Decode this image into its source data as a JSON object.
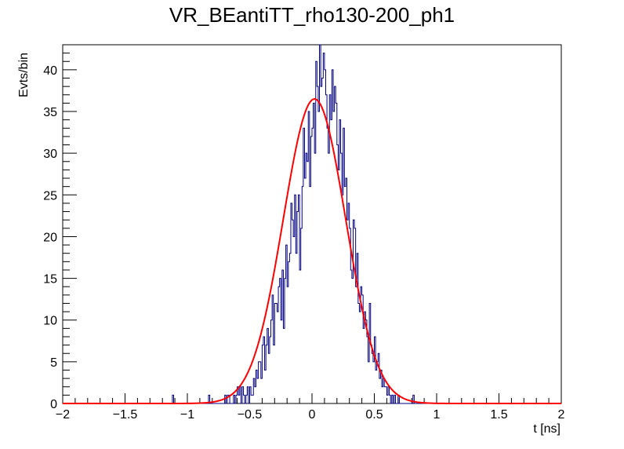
{
  "chart_data": {
    "type": "histogram",
    "title": "VR_BEantiTT_rho130-200_ph1",
    "xlabel": "t [ns]",
    "ylabel": "Evts/bin",
    "xlim": [
      -2,
      2
    ],
    "ylim": [
      0,
      43
    ],
    "x_ticks": [
      -2,
      -1.5,
      -1,
      -0.5,
      0,
      0.5,
      1,
      1.5,
      2
    ],
    "x_tick_labels": [
      "−2",
      "−1.5",
      "−1",
      "−0.5",
      "0",
      "0.5",
      "1",
      "1.5",
      "2"
    ],
    "y_ticks": [
      0,
      5,
      10,
      15,
      20,
      25,
      30,
      35,
      40
    ],
    "y_tick_labels": [
      "0",
      "5",
      "10",
      "15",
      "20",
      "25",
      "30",
      "35",
      "40"
    ],
    "grid": false,
    "series": [
      {
        "kind": "histogram",
        "color": "#000080",
        "bin_width": 0.01,
        "x_start": -2,
        "values": [
          0,
          0,
          0,
          0,
          0,
          0,
          0,
          0,
          0,
          0,
          0,
          0,
          0,
          0,
          0,
          0,
          0,
          0,
          0,
          0,
          0,
          0,
          0,
          0,
          0,
          0,
          0,
          0,
          0,
          0,
          0,
          0,
          0,
          0,
          0,
          0,
          0,
          0,
          0,
          0,
          0,
          0,
          0,
          0,
          0,
          0,
          0,
          0,
          0,
          0,
          0,
          0,
          0,
          0,
          0,
          0,
          0,
          0,
          0,
          0,
          0,
          0,
          0,
          0,
          0,
          0,
          0,
          0,
          0,
          0,
          0,
          0,
          0,
          0,
          0,
          0,
          0,
          0,
          0,
          0,
          0,
          0,
          0,
          0,
          0,
          0,
          0,
          0,
          1,
          0,
          0,
          0,
          0,
          0,
          0,
          0,
          0,
          0,
          0,
          0,
          0,
          0,
          0,
          0,
          0,
          0,
          0,
          0,
          0,
          0,
          0,
          0,
          0,
          0,
          0,
          0,
          0,
          1,
          0,
          0,
          0,
          0,
          0,
          0,
          0,
          0,
          0,
          0,
          0,
          0,
          1,
          0,
          1,
          1,
          0,
          0,
          0,
          1,
          0,
          1,
          2,
          1,
          2,
          0,
          2,
          1,
          0,
          1,
          2,
          0,
          2,
          1,
          1,
          3,
          2,
          4,
          3,
          5,
          5,
          3,
          7,
          8,
          4,
          7,
          9,
          6,
          8,
          10,
          13,
          7,
          12,
          12,
          11,
          14,
          15,
          10,
          16,
          9,
          15,
          19,
          14,
          17,
          18,
          24,
          22,
          20,
          25,
          18,
          23,
          25,
          16,
          21,
          26,
          33,
          27,
          30,
          29,
          35,
          26,
          32,
          33,
          36,
          30,
          41,
          38,
          35,
          43,
          38,
          39,
          42,
          40,
          37,
          33,
          30,
          37,
          34,
          40,
          35,
          38,
          36,
          31,
          28,
          34,
          30,
          25,
          33,
          26,
          27,
          22,
          24,
          21,
          16,
          15,
          22,
          21,
          14,
          18,
          12,
          11,
          14,
          13,
          9,
          11,
          10,
          8,
          5,
          12,
          7,
          6,
          5,
          8,
          4,
          5,
          6,
          3,
          4,
          2,
          3,
          2,
          2,
          1,
          2,
          1,
          0,
          1,
          0,
          1,
          0,
          0,
          1,
          0,
          0,
          0,
          0,
          0,
          0,
          0,
          0,
          0,
          0,
          0,
          1,
          0,
          0,
          0,
          0,
          0,
          0,
          0,
          0,
          0,
          0,
          0,
          0,
          0,
          0,
          0,
          0,
          0,
          0,
          0,
          0,
          0,
          0,
          0,
          0,
          0,
          0,
          0,
          0,
          0,
          0,
          0,
          0,
          0,
          0,
          0,
          0,
          0,
          0,
          0,
          0,
          0,
          0,
          0,
          0,
          0,
          0,
          0,
          0,
          0,
          0,
          0,
          0,
          0,
          0,
          0,
          0,
          0,
          0,
          0,
          0,
          0,
          0,
          0,
          0,
          0,
          0,
          0,
          0,
          0,
          0,
          0,
          0,
          0,
          0,
          0,
          0,
          0,
          0,
          0,
          0,
          0,
          0,
          0,
          0,
          0,
          0,
          0,
          0,
          0,
          0,
          0,
          0,
          0,
          0,
          0,
          0,
          0,
          0,
          0,
          0,
          0,
          0,
          0,
          0,
          0,
          0,
          0,
          0,
          0,
          0
        ]
      },
      {
        "kind": "gaussian-fit",
        "color": "#ff0000",
        "amplitude": 36.5,
        "mean": 0.02,
        "sigma": 0.25
      }
    ]
  }
}
